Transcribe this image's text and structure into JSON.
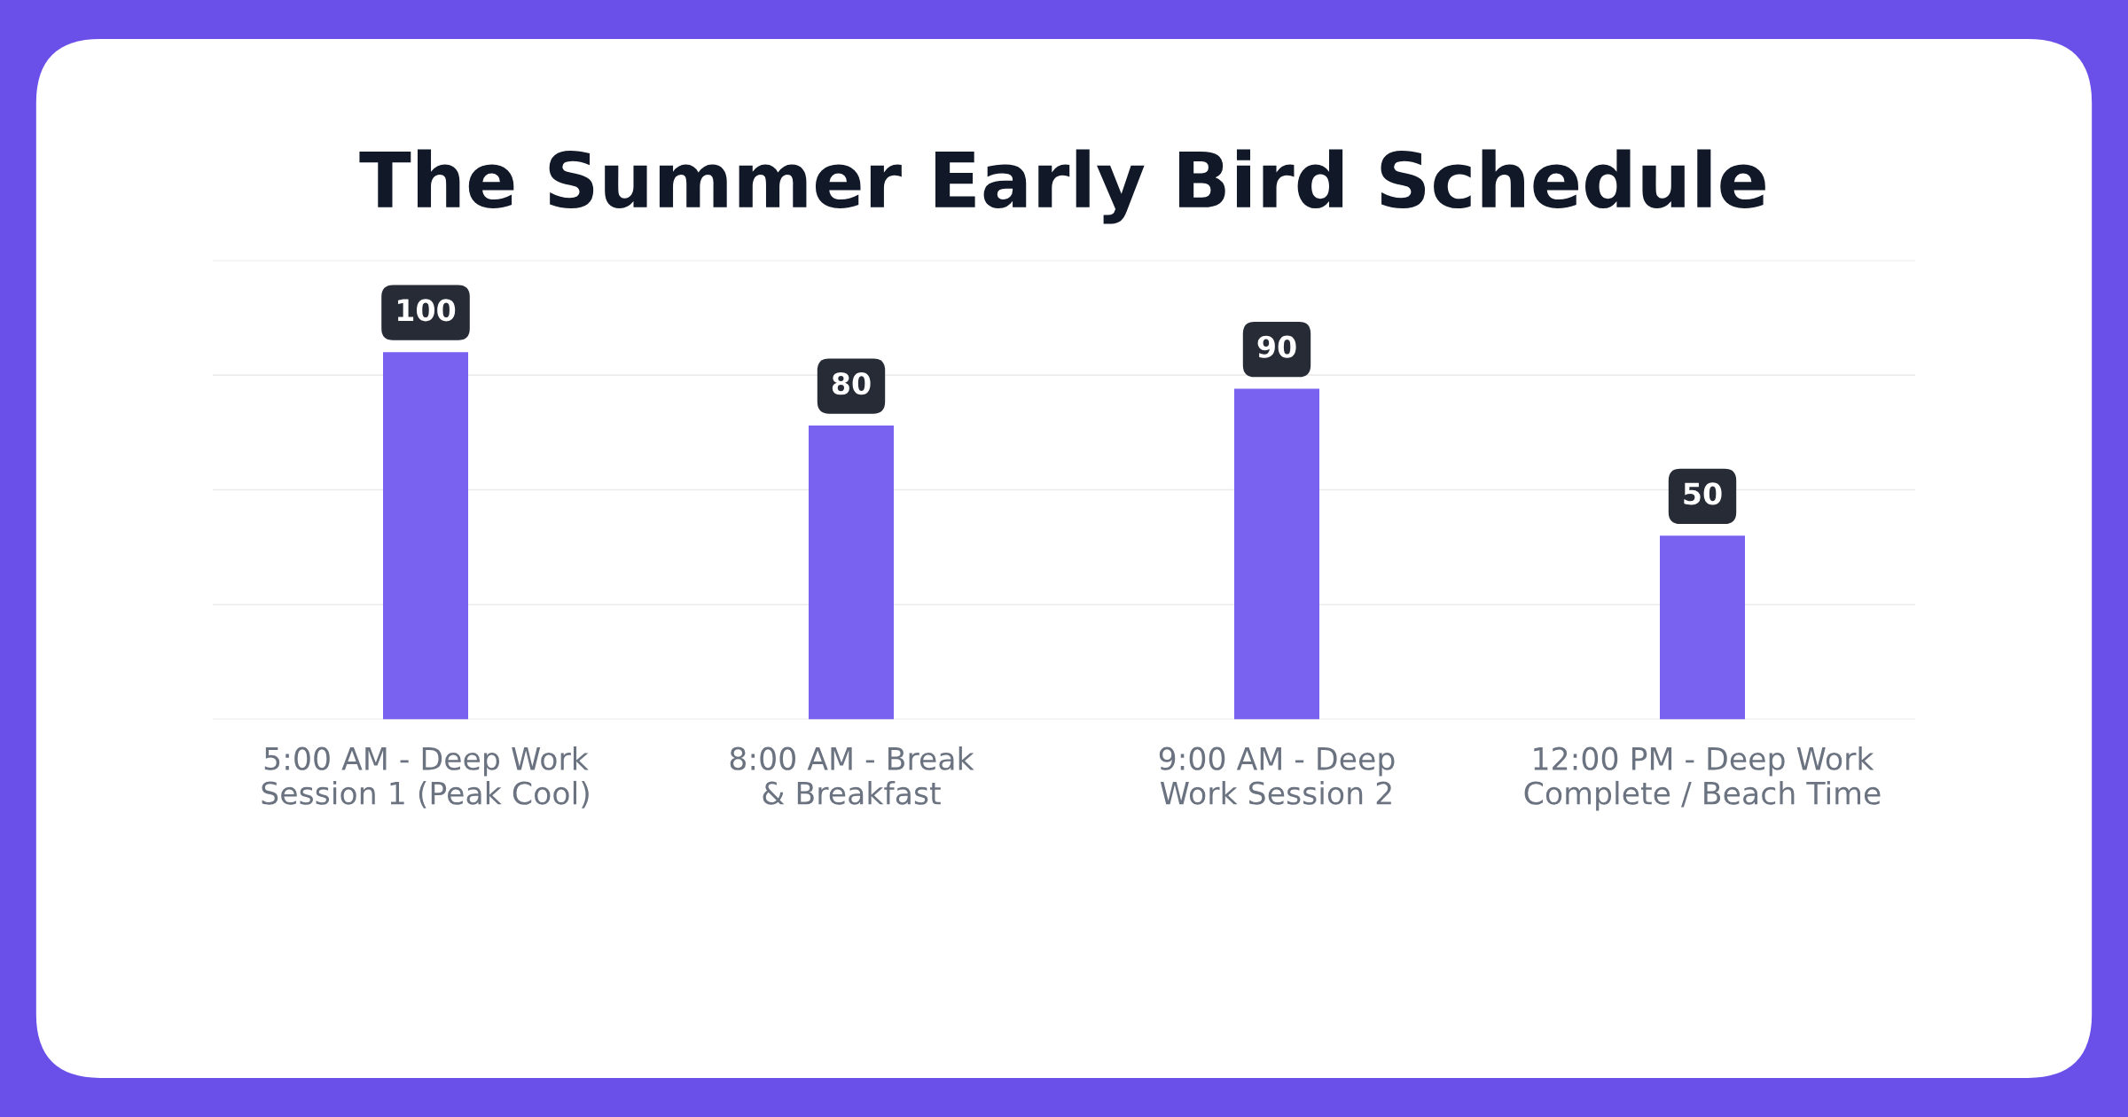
{
  "chart_data": {
    "type": "bar",
    "title": "The Summer Early Bird Schedule",
    "categories": [
      "5:00 AM - Deep Work Session 1 (Peak Cool)",
      "8:00 AM - Break & Breakfast",
      "9:00 AM - Deep Work Session 2",
      "12:00 PM - Deep Work Complete / Beach Time"
    ],
    "values": [
      100,
      80,
      90,
      50
    ],
    "color": "#7a62f0",
    "ylim": [
      0,
      125
    ],
    "yticks": [
      {
        "value": 0,
        "label": null
      },
      {
        "value": 31.25,
        "label": null
      },
      {
        "value": 62.5,
        "label": null
      },
      {
        "value": 93.75,
        "label": null
      },
      {
        "value": 125,
        "label": null
      }
    ],
    "tick_labels": "x",
    "grid": "y",
    "data_labels": true
  }
}
